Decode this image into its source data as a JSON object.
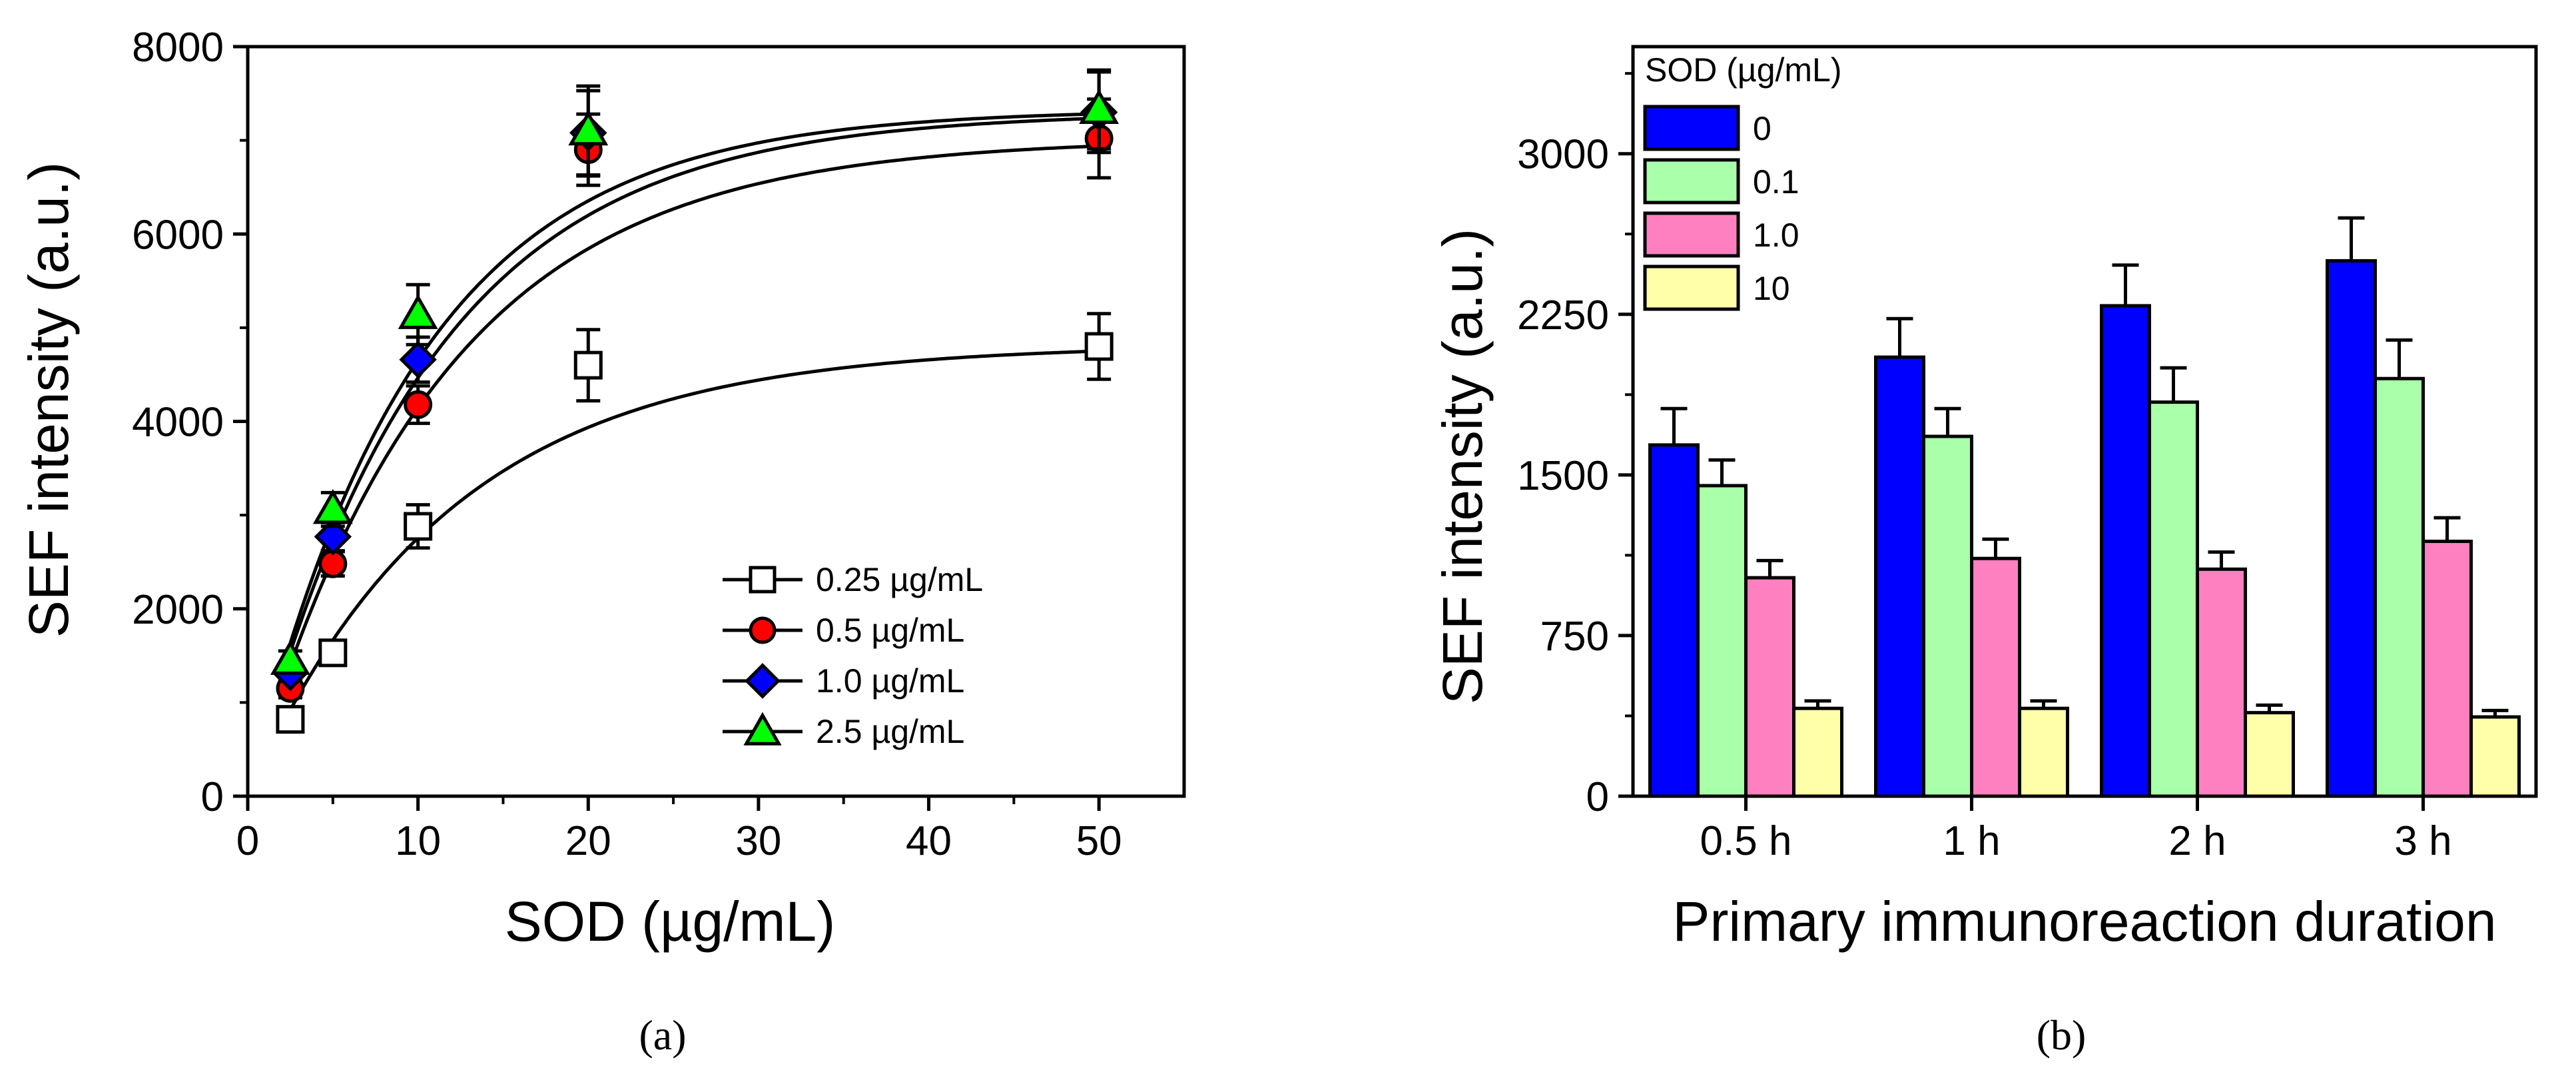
{
  "chart_data": [
    {
      "type": "scatter",
      "caption": "(a)",
      "xlabel": "SOD (µg/mL)",
      "ylabel": "SEF intensity (a.u.)",
      "xlim": [
        0,
        55
      ],
      "ylim": [
        0,
        8000
      ],
      "xticks": [
        0,
        10,
        20,
        30,
        40,
        50
      ],
      "xtick_labels": [
        "0",
        "10",
        "20",
        "30",
        "40",
        "50"
      ],
      "yticks": [
        0,
        2000,
        4000,
        6000,
        8000
      ],
      "ytick_labels": [
        "0",
        "2000",
        "4000",
        "6000",
        "8000"
      ],
      "legend_position": "bottom-right",
      "series": [
        {
          "name": "0.25 µg/mL",
          "marker": "square",
          "color": "#ffffff",
          "x": [
            2.5,
            5,
            10,
            20,
            50
          ],
          "y": [
            820,
            1530,
            2880,
            4600,
            4800
          ],
          "err": [
            80,
            130,
            230,
            380,
            350
          ],
          "fit": {
            "a": 4820,
            "k": 0.0848
          }
        },
        {
          "name": "0.5 µg/mL",
          "marker": "circle",
          "color": "#ff0000",
          "x": [
            2.5,
            5,
            10,
            20,
            50
          ],
          "y": [
            1150,
            2480,
            4180,
            6900,
            7020
          ],
          "err": [
            100,
            130,
            200,
            380,
            420
          ],
          "fit": {
            "a": 7020,
            "k": 0.0893
          }
        },
        {
          "name": "1.0 µg/mL",
          "marker": "diamond",
          "color": "#0000ff",
          "x": [
            2.5,
            5,
            10,
            20,
            50
          ],
          "y": [
            1320,
            2770,
            4660,
            7080,
            7300
          ],
          "err": [
            90,
            150,
            240,
            450,
            430
          ],
          "fit": {
            "a": 7300,
            "k": 0.0946
          }
        },
        {
          "name": "2.5 µg/mL",
          "marker": "triangle",
          "color": "#00ff00",
          "x": [
            2.5,
            5,
            10,
            20,
            50
          ],
          "y": [
            1450,
            3060,
            5140,
            7100,
            7330
          ],
          "err": [
            100,
            180,
            320,
            480,
            420
          ],
          "fit": {
            "a": 7330,
            "k": 0.1008
          }
        }
      ]
    },
    {
      "type": "bar",
      "caption": "(b)",
      "xlabel": "Primary immunoreaction duration",
      "ylabel": "SEF intensity (a.u.)",
      "categories": [
        "0.5 h",
        "1 h",
        "2 h",
        "3 h"
      ],
      "ylim": [
        0,
        3500
      ],
      "yticks": [
        0,
        750,
        1500,
        2250,
        3000
      ],
      "ytick_labels": [
        "0",
        "750",
        "1500",
        "2250",
        "3000"
      ],
      "legend_title": "SOD (µg/mL)",
      "legend_position": "top-left",
      "series": [
        {
          "name": "0",
          "color": "#0000ff",
          "values": [
            1640,
            2050,
            2290,
            2500
          ],
          "err": [
            170,
            180,
            190,
            200
          ]
        },
        {
          "name": "0.1",
          "color": "#aaffaa",
          "values": [
            1450,
            1680,
            1840,
            1950
          ],
          "err": [
            120,
            130,
            160,
            180
          ]
        },
        {
          "name": "1.0",
          "color": "#ff80c0",
          "values": [
            1020,
            1110,
            1060,
            1190
          ],
          "err": [
            80,
            90,
            80,
            110
          ]
        },
        {
          "name": "10",
          "color": "#ffffaa",
          "values": [
            410,
            410,
            390,
            370
          ],
          "err": [
            35,
            35,
            35,
            30
          ]
        }
      ]
    }
  ]
}
